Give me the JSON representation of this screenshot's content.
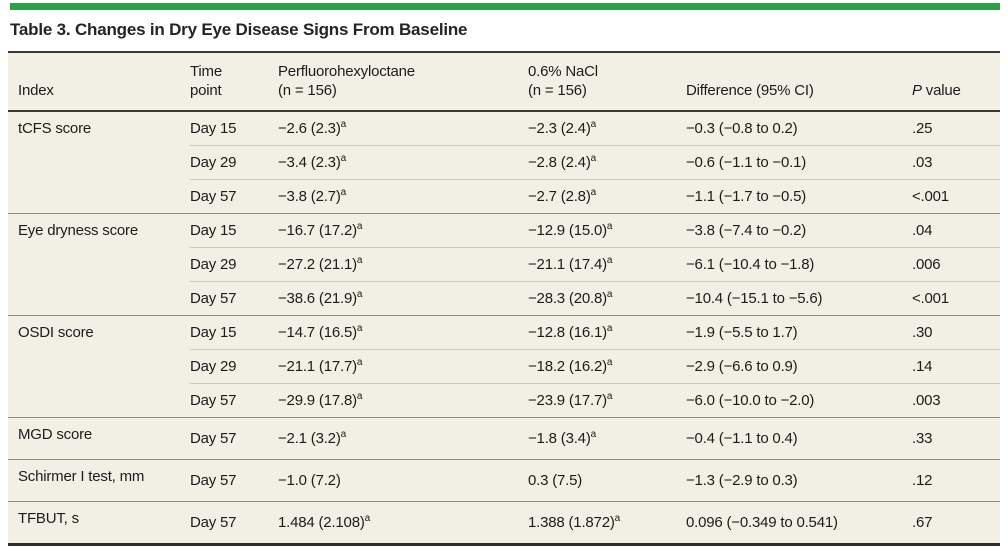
{
  "colors": {
    "accent_green": "#2ea04a",
    "table_background": "#f2efe4",
    "text": "#1c1c1c",
    "rule_dark": "#3a3932",
    "rule_group": "#8f8d82",
    "rule_row_light": "#ccc9bb"
  },
  "title": "Table 3. Changes in Dry Eye Disease Signs From Baseline",
  "header": {
    "index": "Index",
    "time_line1": "Time",
    "time_line2": "point",
    "pfhx_line1": "Perfluorohexyloctane",
    "pfhx_line2": "(n = 156)",
    "nacl_line1": "0.6% NaCl",
    "nacl_line2": "(n = 156)",
    "difference": "Difference (95% CI)",
    "pvalue_italic": "P",
    "pvalue_rest": " value"
  },
  "footnote_marker": "a",
  "groups": [
    {
      "index": "tCFS score",
      "rows": [
        {
          "time": "Day 15",
          "pfhx": "−2.6 (2.3)",
          "pfhx_sup": "a",
          "nacl": "−2.3 (2.4)",
          "nacl_sup": "a",
          "diff": "−0.3 (−0.8 to 0.2)",
          "p": ".25"
        },
        {
          "time": "Day 29",
          "pfhx": "−3.4 (2.3)",
          "pfhx_sup": "a",
          "nacl": "−2.8 (2.4)",
          "nacl_sup": "a",
          "diff": "−0.6 (−1.1 to −0.1)",
          "p": ".03"
        },
        {
          "time": "Day 57",
          "pfhx": "−3.8 (2.7)",
          "pfhx_sup": "a",
          "nacl": "−2.7 (2.8)",
          "nacl_sup": "a",
          "diff": "−1.1 (−1.7 to −0.5)",
          "p": "<.001"
        }
      ]
    },
    {
      "index": "Eye dryness score",
      "rows": [
        {
          "time": "Day 15",
          "pfhx": "−16.7 (17.2)",
          "pfhx_sup": "a",
          "nacl": "−12.9 (15.0)",
          "nacl_sup": "a",
          "diff": "−3.8 (−7.4 to −0.2)",
          "p": ".04"
        },
        {
          "time": "Day 29",
          "pfhx": "−27.2 (21.1)",
          "pfhx_sup": "a",
          "nacl": "−21.1 (17.4)",
          "nacl_sup": "a",
          "diff": "−6.1 (−10.4 to −1.8)",
          "p": ".006"
        },
        {
          "time": "Day 57",
          "pfhx": "−38.6 (21.9)",
          "pfhx_sup": "a",
          "nacl": "−28.3 (20.8)",
          "nacl_sup": "a",
          "diff": "−10.4 (−15.1 to −5.6)",
          "p": "<.001"
        }
      ]
    },
    {
      "index": "OSDI score",
      "rows": [
        {
          "time": "Day 15",
          "pfhx": "−14.7 (16.5)",
          "pfhx_sup": "a",
          "nacl": "−12.8 (16.1)",
          "nacl_sup": "a",
          "diff": "−1.9 (−5.5 to 1.7)",
          "p": ".30"
        },
        {
          "time": "Day 29",
          "pfhx": "−21.1 (17.7)",
          "pfhx_sup": "a",
          "nacl": "−18.2 (16.2)",
          "nacl_sup": "a",
          "diff": "−2.9 (−6.6 to 0.9)",
          "p": ".14"
        },
        {
          "time": "Day 57",
          "pfhx": "−29.9 (17.8)",
          "pfhx_sup": "a",
          "nacl": "−23.9 (17.7)",
          "nacl_sup": "a",
          "diff": "−6.0 (−10.0 to −2.0)",
          "p": ".003"
        }
      ]
    },
    {
      "index": "MGD score",
      "rows": [
        {
          "time": "Day 57",
          "pfhx": "−2.1 (3.2)",
          "pfhx_sup": "a",
          "nacl": "−1.8 (3.4)",
          "nacl_sup": "a",
          "diff": "−0.4 (−1.1 to 0.4)",
          "p": ".33"
        }
      ]
    },
    {
      "index": "Schirmer I test, mm",
      "rows": [
        {
          "time": "Day 57",
          "pfhx": "−1.0 (7.2)",
          "pfhx_sup": null,
          "nacl": "0.3 (7.5)",
          "nacl_sup": null,
          "diff": "−1.3 (−2.9 to 0.3)",
          "p": ".12"
        }
      ]
    },
    {
      "index": "TFBUT, s",
      "rows": [
        {
          "time": "Day 57",
          "pfhx": "1.484 (2.108)",
          "pfhx_sup": "a",
          "nacl": "1.388 (1.872)",
          "nacl_sup": "a",
          "diff": "0.096 (−0.349 to 0.541)",
          "p": ".67"
        }
      ]
    }
  ]
}
